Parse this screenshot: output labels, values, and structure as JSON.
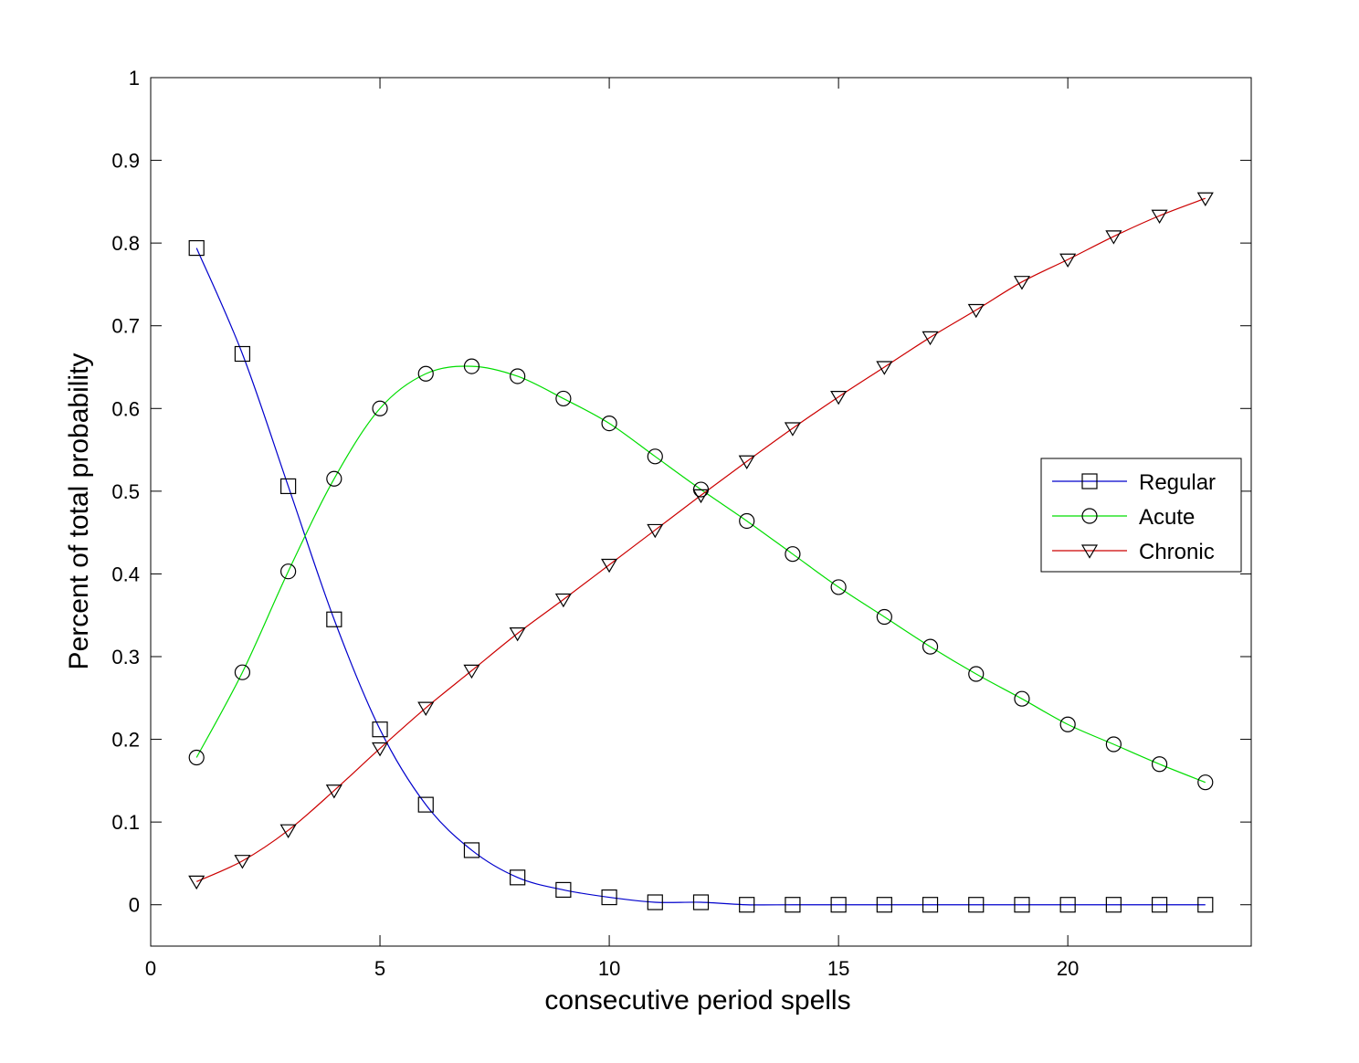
{
  "chart_data": {
    "type": "line",
    "title": "",
    "xlabel": "consecutive period spells",
    "ylabel": "Percent of total probability",
    "xlim": [
      0,
      24
    ],
    "ylim": [
      -0.05,
      1
    ],
    "xticks": [
      0,
      5,
      10,
      15,
      20
    ],
    "yticks": [
      0,
      0.1,
      0.2,
      0.3,
      0.4,
      0.5,
      0.6,
      0.7,
      0.8,
      0.9,
      1
    ],
    "xtick_labels": [
      "0",
      "5",
      "10",
      "15",
      "20"
    ],
    "ytick_labels": [
      "0",
      "0.1",
      "0.2",
      "0.3",
      "0.4",
      "0.5",
      "0.6",
      "0.7",
      "0.8",
      "0.9",
      "1"
    ],
    "grid": false,
    "legend_position": "right",
    "x": [
      1,
      2,
      3,
      4,
      5,
      6,
      7,
      8,
      9,
      10,
      11,
      12,
      13,
      14,
      15,
      16,
      17,
      18,
      19,
      20,
      21,
      22,
      23
    ],
    "series": [
      {
        "name": "Regular",
        "color": "#0000cc",
        "marker": "square",
        "values": [
          0.794,
          0.666,
          0.506,
          0.345,
          0.212,
          0.121,
          0.066,
          0.033,
          0.018,
          0.009,
          0.003,
          0.003,
          0.0,
          0.0,
          0.0,
          0.0,
          0.0,
          0.0,
          0.0,
          0.0,
          0.0,
          0.0,
          0.0
        ]
      },
      {
        "name": "Acute",
        "color": "#00dd00",
        "marker": "circle",
        "values": [
          0.178,
          0.281,
          0.403,
          0.515,
          0.6,
          0.642,
          0.651,
          0.639,
          0.612,
          0.582,
          0.542,
          0.502,
          0.464,
          0.424,
          0.384,
          0.348,
          0.312,
          0.279,
          0.249,
          0.218,
          0.194,
          0.17,
          0.148
        ]
      },
      {
        "name": "Chronic",
        "color": "#cc0000",
        "marker": "triangle-down",
        "values": [
          0.028,
          0.053,
          0.09,
          0.138,
          0.189,
          0.238,
          0.283,
          0.328,
          0.369,
          0.411,
          0.453,
          0.495,
          0.536,
          0.576,
          0.614,
          0.65,
          0.686,
          0.719,
          0.753,
          0.78,
          0.808,
          0.833,
          0.854
        ]
      }
    ]
  }
}
